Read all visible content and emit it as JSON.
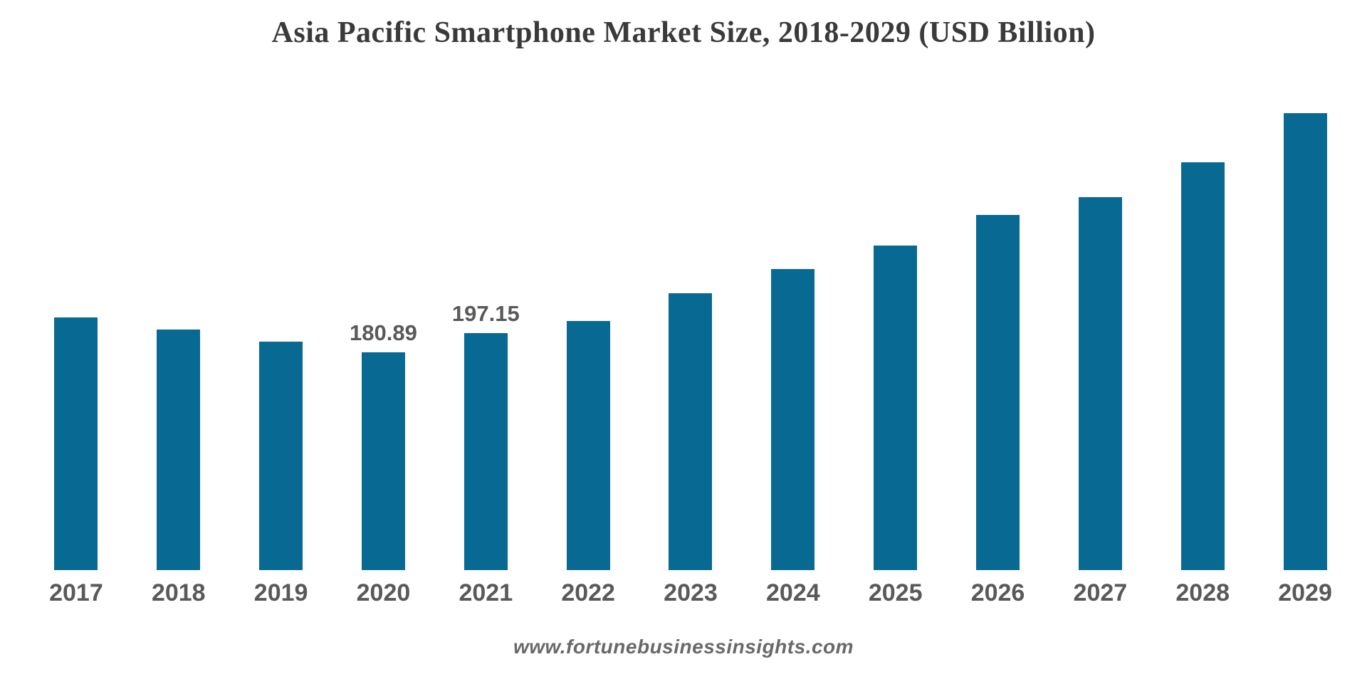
{
  "chart_data": {
    "type": "bar",
    "title": "Asia Pacific Smartphone Market Size, 2018-2029 (USD Billion)",
    "categories": [
      "2017",
      "2018",
      "2019",
      "2020",
      "2021",
      "2022",
      "2023",
      "2024",
      "2025",
      "2026",
      "2027",
      "2028",
      "2029"
    ],
    "values": [
      210,
      200,
      190,
      180.89,
      197.15,
      207,
      230,
      250,
      270,
      295,
      310,
      339,
      380
    ],
    "data_labels": [
      "",
      "",
      "",
      "180.89",
      "197.15",
      "",
      "",
      "",
      "",
      "",
      "",
      "",
      ""
    ],
    "xlabel": "",
    "ylabel": "",
    "ylim": [
      0,
      400
    ],
    "grid": false,
    "legend_position": "none",
    "bar_color": "#086992",
    "value_label_color": "#595959",
    "tick_label_color": "#58595b",
    "title_color": "#3a3a3a"
  },
  "footer": {
    "website": "www.fortunebusinessinsights.com"
  }
}
